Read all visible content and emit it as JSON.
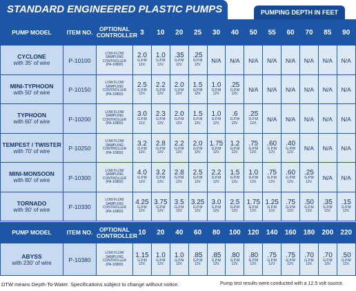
{
  "header": {
    "title": "STANDARD ENGINEERED PLASTIC PUMPS",
    "depth_label": "PUMPING DEPTH IN FEET"
  },
  "flow_unit": "G.P.M",
  "voltage": "12V.",
  "table": {
    "columns": [
      "PUMP MODEL",
      "ITEM NO.",
      "OPTIONAL CONTROLLER"
    ],
    "depths": [
      "3",
      "10",
      "20",
      "25",
      "30",
      "40",
      "50",
      "55",
      "60",
      "70",
      "85",
      "90"
    ],
    "rows": [
      {
        "model": "CYCLONE",
        "wire": "with 35' of wire",
        "item": "P-10100",
        "controller": [
          "LOW FLOW",
          "SAMPLING",
          "CONTROLLER",
          "(PA-10800)"
        ],
        "flows": [
          "2.0",
          "1.0",
          ".35",
          ".25",
          "N/A",
          "N/A",
          "N/A",
          "N/A",
          "N/A",
          "N/A",
          "N/A",
          "N/A"
        ]
      },
      {
        "model": "MINI-TYPHOON",
        "wire": "with 50' of wire",
        "item": "P-10150",
        "controller": [
          "LOW FLOW",
          "SAMPLING",
          "CONTROLLER",
          "(PA-10800)"
        ],
        "flows": [
          "2.5",
          "2.2",
          "2.0",
          "1.5",
          "1.0",
          ".25",
          "N/A",
          "N/A",
          "N/A",
          "N/A",
          "N/A",
          "N/A"
        ]
      },
      {
        "model": "TYPHOON",
        "wire": "with 60' of wire",
        "item": "P-10200",
        "controller": [
          "LOW FLOW",
          "SAMPLING",
          "CONTROLLER",
          "(PA-10800)"
        ],
        "flows": [
          "3.0",
          "2.3",
          "2.0",
          "1.5",
          "1.0",
          ".6",
          ".25",
          "N/A",
          "N/A",
          "N/A",
          "N/A",
          "N/A"
        ]
      },
      {
        "model": "TEMPEST / TWISTER",
        "wire": "with 70' of wire",
        "item": "P-10250",
        "controller": [
          "LOW FLOW",
          "SAMPLING",
          "CONTROLLER",
          "(PA-10800)"
        ],
        "flows": [
          "3.2",
          "2.8",
          "2.2",
          "2.0",
          "1.75",
          "1.2",
          ".75",
          ".60",
          ".40",
          "N/A",
          "N/A",
          "N/A"
        ]
      },
      {
        "model": "MINI-MONSOON",
        "wire": "with 80' of wire",
        "item": "P-10300",
        "controller": [
          "LOW FLOW",
          "SAMPLING",
          "CONTROLLER",
          "(PA-10800)"
        ],
        "flows": [
          "4.0",
          "3.2",
          "2.8",
          "2.5",
          "2.2",
          "1.5",
          "1.0",
          ".75",
          ".60",
          ".25",
          "N/A",
          "N/A"
        ]
      },
      {
        "model": "TORNADO",
        "wire": "with 90' of wire",
        "item": "P-10330",
        "controller": [
          "LOW FLOW",
          "SAMPLING",
          "CONTROLLER",
          "(PA-10800)"
        ],
        "flows": [
          "4.25",
          "3.75",
          "3.5",
          "3.25",
          "3.0",
          "2.5",
          "1.75",
          "1.25",
          ".75",
          ".50",
          ".35",
          ".15"
        ]
      }
    ]
  },
  "table2": {
    "columns": [
      "PUMP MODEL",
      "ITEM NO.",
      "OPTIONAL CONTROLLER"
    ],
    "depths": [
      "10",
      "20",
      "40",
      "60",
      "80",
      "100",
      "120",
      "140",
      "160",
      "180",
      "200",
      "220"
    ],
    "rows": [
      {
        "model": "ABYSS",
        "wire": "with 230' of wire",
        "item": "P-10380",
        "controller": [
          "LOW FLOW",
          "SAMPLING",
          "CONTROLLER",
          "(PA-10800)"
        ],
        "flows": [
          "1.15",
          "1.0",
          "1.0",
          ".85",
          ".85",
          ".80",
          ".80",
          ".75",
          ".75",
          ".70",
          ".70",
          ".50"
        ]
      }
    ]
  },
  "footer": {
    "left": "DTW means Depth-To-Water.  Specifications subject to change without notice.",
    "right": "Pump test results were conducted with a 12.5 volt source."
  }
}
